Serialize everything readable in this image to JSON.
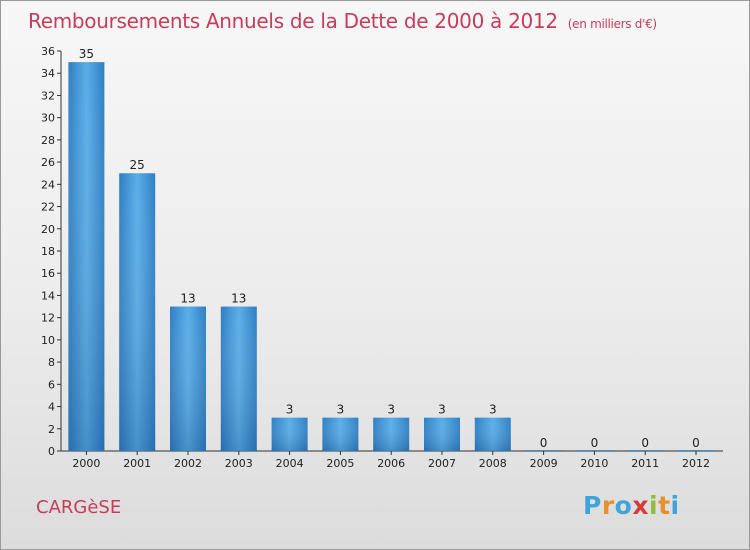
{
  "title": "Remboursements Annuels de la Dette de 2000 à 2012",
  "unit": "(en milliers d'€)",
  "commune": "CARGèSE",
  "logo": {
    "letters": [
      "P",
      "r",
      "o",
      "x",
      "i",
      "t",
      "i"
    ],
    "colors": [
      "#3fa3dc",
      "#e8912c",
      "#3fa3dc",
      "#d63c3c",
      "#8cbf3f",
      "#e8912c",
      "#3fa3dc"
    ]
  },
  "chart_data": {
    "type": "bar",
    "categories": [
      "2000",
      "2001",
      "2002",
      "2003",
      "2004",
      "2005",
      "2006",
      "2007",
      "2008",
      "2009",
      "2010",
      "2011",
      "2012"
    ],
    "values": [
      35,
      25,
      13,
      13,
      3,
      3,
      3,
      3,
      3,
      0,
      0,
      0,
      0
    ],
    "data_labels": [
      "35",
      "25",
      "13",
      "13",
      "3",
      "3",
      "3",
      "3",
      "3",
      "0",
      "0",
      "0",
      "0"
    ],
    "ylim": [
      0,
      36
    ],
    "yticks": [
      0,
      2,
      4,
      6,
      8,
      10,
      12,
      14,
      16,
      18,
      20,
      22,
      24,
      26,
      28,
      30,
      32,
      34,
      36
    ],
    "grid": false,
    "bar_color": "#3b92d6"
  }
}
